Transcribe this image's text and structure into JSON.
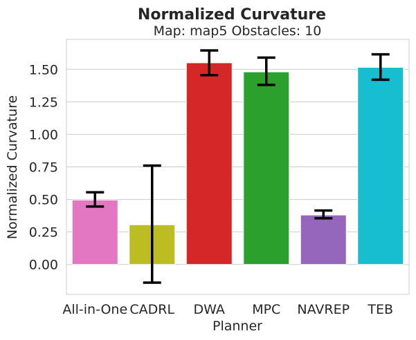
{
  "chart_data": {
    "type": "bar",
    "title": "Normalized Curvature",
    "subtitle": "Map: map5 Obstacles: 10",
    "xlabel": "Planner",
    "ylabel": "Normalized Curvature",
    "categories": [
      "All-in-One",
      "CADRL",
      "DWA",
      "MPC",
      "NAVREP",
      "TEB"
    ],
    "values": [
      0.495,
      0.305,
      1.55,
      1.48,
      0.38,
      1.515
    ],
    "error_low": [
      0.445,
      -0.14,
      1.455,
      1.38,
      0.355,
      1.42
    ],
    "error_high": [
      0.555,
      0.76,
      1.645,
      1.59,
      0.415,
      1.615
    ],
    "colors": [
      "#e377c2",
      "#bcbd22",
      "#d62728",
      "#2ca02c",
      "#9467bd",
      "#17becf"
    ],
    "yticks": [
      "0.00",
      "0.25",
      "0.50",
      "0.75",
      "1.00",
      "1.25",
      "1.50"
    ],
    "ylim": [
      -0.23,
      1.73
    ],
    "grid": true,
    "grid_axis": "y",
    "legend": "none"
  }
}
